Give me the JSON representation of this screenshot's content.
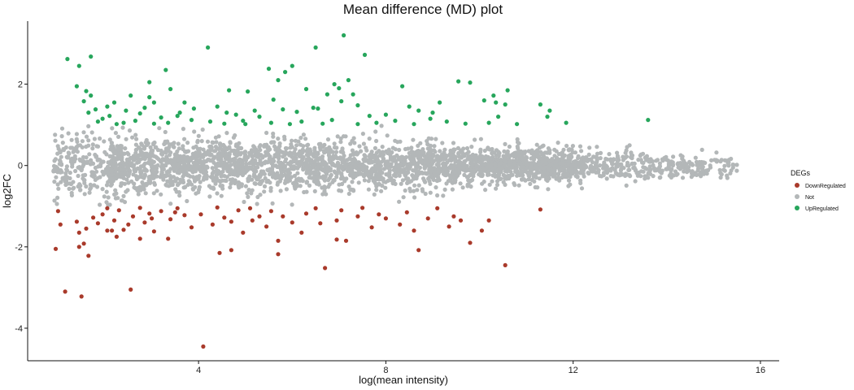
{
  "chart_data": {
    "type": "scatter",
    "title": "Mean difference (MD) plot",
    "xlabel": "log(mean intensity)",
    "ylabel": "log2FC",
    "xlim": [
      0.35,
      16.4
    ],
    "ylim": [
      -4.8,
      3.55
    ],
    "xticks": [
      4,
      8,
      12,
      16
    ],
    "yticks": [
      -4,
      -2,
      0,
      2
    ],
    "grid": false,
    "legend": {
      "title": "DEGs",
      "position": "right",
      "entries": [
        {
          "name": "DownRegulated",
          "color": "#A93A2B"
        },
        {
          "name": "Not",
          "color": "#B3B7B8"
        },
        {
          "name": "UpRegulated",
          "color": "#27A65C"
        }
      ]
    },
    "series": [
      {
        "name": "UpRegulated",
        "color": "#27A65C",
        "points": [
          [
            7.1,
            3.2
          ],
          [
            6.5,
            2.9
          ],
          [
            4.2,
            2.9
          ],
          [
            1.2,
            2.62
          ],
          [
            1.7,
            2.68
          ],
          [
            1.45,
            2.45
          ],
          [
            7.55,
            2.72
          ],
          [
            6.0,
            2.45
          ],
          [
            5.5,
            2.38
          ],
          [
            3.3,
            2.35
          ],
          [
            5.85,
            2.3
          ],
          [
            5.7,
            2.1
          ],
          [
            7.2,
            2.1
          ],
          [
            2.95,
            2.05
          ],
          [
            9.55,
            2.07
          ],
          [
            9.8,
            2.04
          ],
          [
            6.9,
            2.0
          ],
          [
            1.4,
            1.95
          ],
          [
            8.35,
            1.95
          ],
          [
            7.0,
            1.9
          ],
          [
            3.4,
            1.88
          ],
          [
            6.3,
            1.88
          ],
          [
            1.6,
            1.83
          ],
          [
            5.05,
            1.82
          ],
          [
            4.65,
            1.85
          ],
          [
            10.6,
            1.85
          ],
          [
            1.7,
            1.72
          ],
          [
            2.55,
            1.72
          ],
          [
            7.3,
            1.75
          ],
          [
            10.3,
            1.72
          ],
          [
            2.95,
            1.68
          ],
          [
            6.75,
            1.75
          ],
          [
            5.6,
            1.62
          ],
          [
            7.05,
            1.58
          ],
          [
            10.1,
            1.6
          ],
          [
            1.55,
            1.58
          ],
          [
            2.2,
            1.55
          ],
          [
            3.05,
            1.55
          ],
          [
            9.15,
            1.55
          ],
          [
            10.35,
            1.55
          ],
          [
            10.55,
            1.5
          ],
          [
            11.3,
            1.5
          ],
          [
            2.05,
            1.45
          ],
          [
            4.4,
            1.45
          ],
          [
            7.4,
            1.48
          ],
          [
            8.5,
            1.45
          ],
          [
            1.8,
            1.38
          ],
          [
            3.9,
            1.4
          ],
          [
            6.45,
            1.42
          ],
          [
            1.65,
            1.3
          ],
          [
            2.45,
            1.35
          ],
          [
            3.6,
            1.3
          ],
          [
            5.8,
            1.38
          ],
          [
            8.7,
            1.35
          ],
          [
            11.5,
            1.35
          ],
          [
            2.1,
            1.22
          ],
          [
            2.75,
            1.28
          ],
          [
            4.8,
            1.25
          ],
          [
            6.1,
            1.32
          ],
          [
            10.4,
            1.2
          ],
          [
            11.45,
            1.2
          ],
          [
            1.95,
            1.15
          ],
          [
            3.2,
            1.18
          ],
          [
            3.85,
            1.12
          ],
          [
            5.3,
            1.2
          ],
          [
            7.65,
            1.22
          ],
          [
            8.95,
            1.15
          ],
          [
            13.6,
            1.12
          ],
          [
            1.85,
            1.08
          ],
          [
            2.4,
            1.05
          ],
          [
            2.65,
            1.1
          ],
          [
            3.35,
            1.05
          ],
          [
            4.25,
            1.08
          ],
          [
            4.95,
            1.1
          ],
          [
            5.55,
            1.05
          ],
          [
            6.2,
            1.08
          ],
          [
            6.85,
            1.12
          ],
          [
            7.8,
            1.05
          ],
          [
            8.2,
            1.1
          ],
          [
            9.3,
            1.08
          ],
          [
            10.2,
            1.05
          ],
          [
            11.85,
            1.05
          ],
          [
            2.25,
            1.02
          ],
          [
            3.05,
            1.03
          ],
          [
            4.55,
            1.03
          ],
          [
            5.0,
            1.02
          ],
          [
            5.95,
            1.02
          ],
          [
            6.65,
            1.03
          ],
          [
            7.4,
            1.02
          ],
          [
            8.6,
            1.02
          ],
          [
            9.7,
            1.03
          ],
          [
            10.8,
            1.02
          ],
          [
            4.6,
            1.3
          ],
          [
            5.2,
            1.35
          ],
          [
            6.55,
            1.4
          ],
          [
            3.7,
            1.55
          ],
          [
            2.85,
            1.42
          ],
          [
            8.0,
            1.25
          ],
          [
            9.0,
            1.3
          ],
          [
            3.55,
            1.22
          ]
        ]
      },
      {
        "name": "DownRegulated",
        "color": "#A93A2B",
        "points": [
          [
            4.1,
            -4.45
          ],
          [
            1.5,
            -3.22
          ],
          [
            1.15,
            -3.1
          ],
          [
            2.55,
            -3.05
          ],
          [
            0.95,
            -2.05
          ],
          [
            6.7,
            -2.52
          ],
          [
            10.55,
            -2.45
          ],
          [
            5.7,
            -2.18
          ],
          [
            1.65,
            -2.22
          ],
          [
            4.45,
            -2.15
          ],
          [
            4.7,
            -2.08
          ],
          [
            8.7,
            -2.08
          ],
          [
            1.45,
            -2.0
          ],
          [
            1.55,
            -1.92
          ],
          [
            5.7,
            -1.85
          ],
          [
            9.8,
            -1.9
          ],
          [
            2.75,
            -1.8
          ],
          [
            6.95,
            -1.82
          ],
          [
            7.15,
            -1.85
          ],
          [
            3.35,
            -1.8
          ],
          [
            2.25,
            -1.75
          ],
          [
            1.45,
            -1.65
          ],
          [
            2.05,
            -1.6
          ],
          [
            3.05,
            -1.62
          ],
          [
            4.95,
            -1.65
          ],
          [
            6.2,
            -1.65
          ],
          [
            8.6,
            -1.6
          ],
          [
            10.05,
            -1.6
          ],
          [
            1.6,
            -1.55
          ],
          [
            2.4,
            -1.58
          ],
          [
            3.85,
            -1.52
          ],
          [
            5.45,
            -1.5
          ],
          [
            7.7,
            -1.52
          ],
          [
            9.35,
            -1.5
          ],
          [
            1.05,
            -1.45
          ],
          [
            1.85,
            -1.42
          ],
          [
            2.85,
            -1.4
          ],
          [
            4.3,
            -1.45
          ],
          [
            6.6,
            -1.42
          ],
          [
            8.3,
            -1.45
          ],
          [
            1.4,
            -1.38
          ],
          [
            2.2,
            -1.35
          ],
          [
            3.4,
            -1.32
          ],
          [
            5.15,
            -1.35
          ],
          [
            6.95,
            -1.35
          ],
          [
            9.6,
            -1.35
          ],
          [
            10.2,
            -1.35
          ],
          [
            1.75,
            -1.28
          ],
          [
            2.6,
            -1.25
          ],
          [
            3.7,
            -1.22
          ],
          [
            4.55,
            -1.28
          ],
          [
            5.8,
            -1.25
          ],
          [
            7.4,
            -1.25
          ],
          [
            8.9,
            -1.3
          ],
          [
            1.95,
            -1.2
          ],
          [
            2.95,
            -1.18
          ],
          [
            4.05,
            -1.2
          ],
          [
            6.3,
            -1.18
          ],
          [
            7.85,
            -1.2
          ],
          [
            9.45,
            -1.25
          ],
          [
            1.0,
            -1.12
          ],
          [
            2.3,
            -1.1
          ],
          [
            3.2,
            -1.12
          ],
          [
            4.85,
            -1.1
          ],
          [
            5.55,
            -1.12
          ],
          [
            7.05,
            -1.1
          ],
          [
            8.45,
            -1.15
          ],
          [
            11.3,
            -1.08
          ],
          [
            2.05,
            -1.05
          ],
          [
            2.75,
            -1.04
          ],
          [
            3.55,
            -1.05
          ],
          [
            4.4,
            -1.03
          ],
          [
            5.1,
            -1.05
          ],
          [
            6.5,
            -1.05
          ],
          [
            7.5,
            -1.04
          ],
          [
            9.1,
            -1.05
          ],
          [
            2.5,
            -1.45
          ],
          [
            3.0,
            -1.3
          ],
          [
            4.7,
            -1.38
          ],
          [
            6.0,
            -1.4
          ],
          [
            5.3,
            -1.25
          ],
          [
            8.0,
            -1.3
          ],
          [
            2.15,
            -1.6
          ],
          [
            3.5,
            -1.15
          ]
        ]
      },
      {
        "name": "Not",
        "color": "#B3B7B8",
        "trend": {
          "x_range": [
            0.9,
            15.5
          ],
          "y_mean": 0.0,
          "spread": "widest at low intensity (about ±1), narrowing to about ±0.3 near x = 15",
          "density": "dense cloud of several thousand points"
        }
      }
    ]
  }
}
